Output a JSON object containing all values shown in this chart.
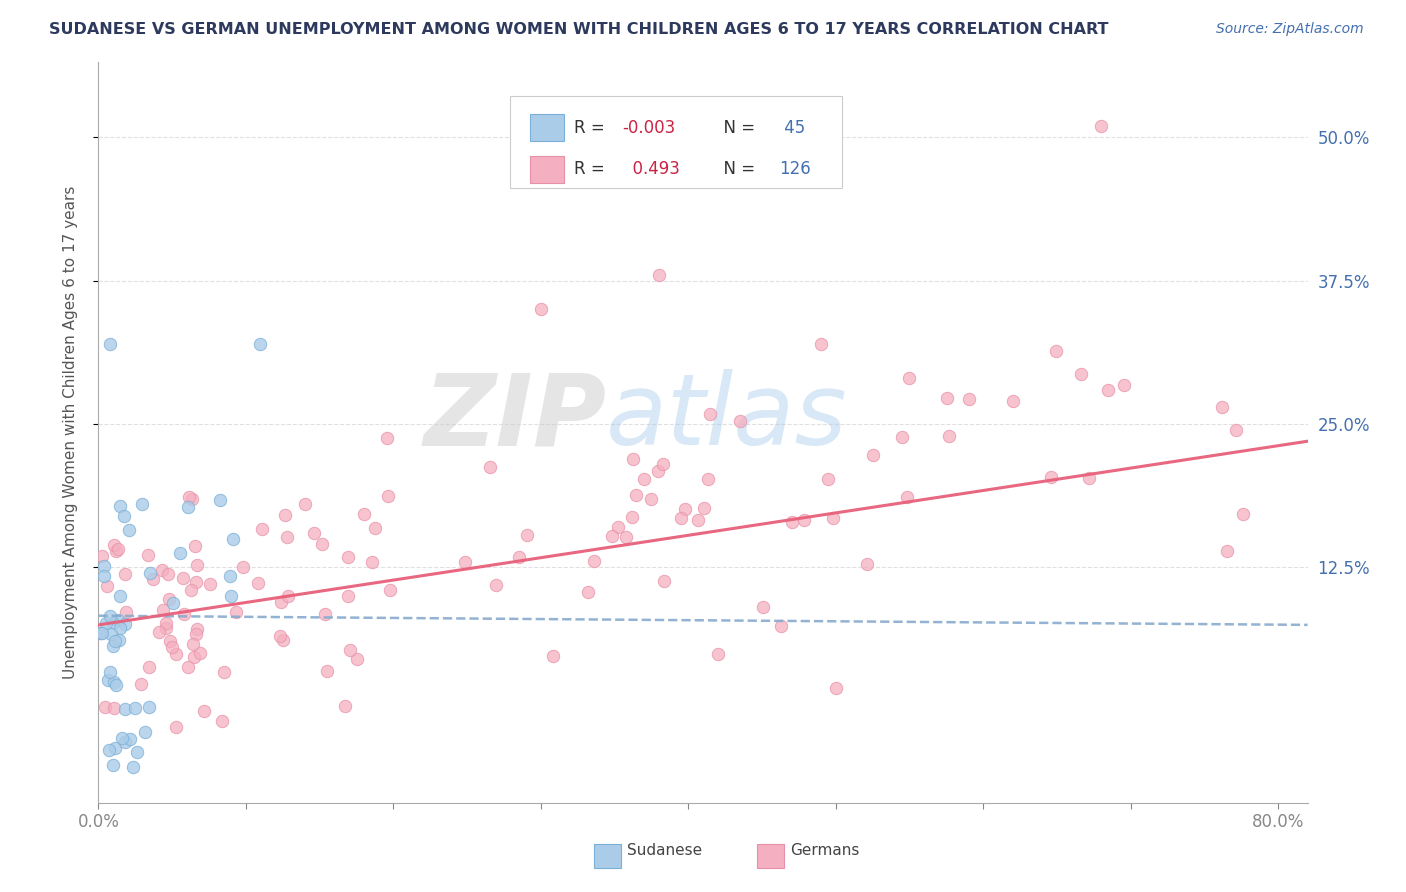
{
  "title": "SUDANESE VS GERMAN UNEMPLOYMENT AMONG WOMEN WITH CHILDREN AGES 6 TO 17 YEARS CORRELATION CHART",
  "source": "Source: ZipAtlas.com",
  "ylabel": "Unemployment Among Women with Children Ages 6 to 17 years",
  "yticks_labels": [
    "12.5%",
    "25.0%",
    "37.5%",
    "50.0%"
  ],
  "ytick_vals": [
    0.125,
    0.25,
    0.375,
    0.5
  ],
  "xlim": [
    0.0,
    0.82
  ],
  "ylim": [
    -0.08,
    0.565
  ],
  "legend_r_sudanese": "-0.003",
  "legend_n_sudanese": "45",
  "legend_r_german": "0.493",
  "legend_n_german": "126",
  "sudanese_color": "#aacce8",
  "german_color": "#f4afc0",
  "sudanese_edge_color": "#7ab0d8",
  "german_edge_color": "#e890a8",
  "sudanese_line_color": "#88aacc",
  "german_line_color": "#e8607a",
  "watermark_zip": "ZIP",
  "watermark_atlas": "atlas",
  "background_color": "#ffffff",
  "title_color": "#2d3a5e",
  "source_color": "#4470b0",
  "axis_label_color": "#4470b0",
  "legend_text_color_r": "#cc2244",
  "legend_text_color_n": "#4470b0",
  "grid_color": "#cccccc"
}
